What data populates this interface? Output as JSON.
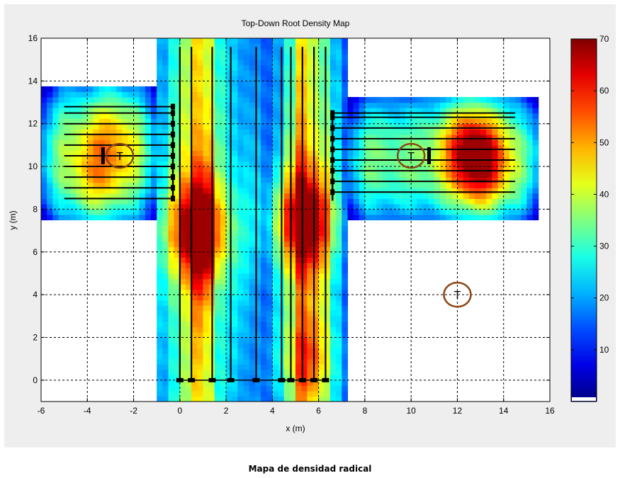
{
  "chart_data": {
    "type": "heatmap",
    "title": "Top-Down Root Density Map",
    "xlabel": "x (m)",
    "ylabel": "y (m)",
    "xlim": [
      -6,
      16
    ],
    "ylim": [
      -1,
      16
    ],
    "x_ticks": [
      -6,
      -4,
      -2,
      0,
      2,
      4,
      6,
      8,
      10,
      12,
      14,
      16
    ],
    "y_ticks": [
      0,
      2,
      4,
      6,
      8,
      10,
      12,
      14,
      16
    ],
    "grid": true,
    "colorbar": {
      "min": 0,
      "max": 70,
      "ticks": [
        10,
        20,
        30,
        40,
        50,
        60,
        70
      ],
      "colormap": "jet"
    },
    "density_bands_x": [
      {
        "x0": -1,
        "x1": -0.5,
        "value": 25
      },
      {
        "x0": -0.5,
        "x1": 0,
        "value": 34
      },
      {
        "x0": 0,
        "x1": 0.5,
        "value": 44
      },
      {
        "x0": 0.5,
        "x1": 1,
        "value": 55
      },
      {
        "x0": 1,
        "x1": 1.5,
        "value": 50
      },
      {
        "x0": 1.5,
        "x1": 2,
        "value": 33
      },
      {
        "x0": 2,
        "x1": 2.5,
        "value": 27
      },
      {
        "x0": 2.5,
        "x1": 3,
        "value": 24
      },
      {
        "x0": 3,
        "x1": 3.5,
        "value": 22
      },
      {
        "x0": 3.5,
        "x1": 4,
        "value": 17
      },
      {
        "x0": 4,
        "x1": 4.5,
        "value": 24
      },
      {
        "x0": 4.5,
        "x1": 5,
        "value": 36
      },
      {
        "x0": 5,
        "x1": 5.5,
        "value": 54
      },
      {
        "x0": 5.5,
        "x1": 6,
        "value": 47
      },
      {
        "x0": 6,
        "x1": 6.5,
        "value": 40
      },
      {
        "x0": 6.5,
        "x1": 7,
        "value": 26
      },
      {
        "x0": 7,
        "x1": 7.3,
        "value": 16
      }
    ],
    "density_regions": [
      {
        "name": "center",
        "x": [
          -1,
          7.3
        ],
        "y": [
          -1,
          16
        ]
      },
      {
        "name": "left-arm",
        "x": [
          -6,
          -1
        ],
        "y": [
          7.5,
          13.7
        ]
      },
      {
        "name": "right-arm",
        "x": [
          7.3,
          15.5
        ],
        "y": [
          7.5,
          13.2
        ]
      }
    ],
    "hotspots": [
      {
        "x": 0.8,
        "y": 7.0,
        "value": 65
      },
      {
        "x": 5.3,
        "y": 7.5,
        "value": 63
      },
      {
        "x": 12.6,
        "y": 11.0,
        "value": 58
      },
      {
        "x": 13.0,
        "y": 9.8,
        "value": 54
      },
      {
        "x": -3.5,
        "y": 9.3,
        "value": 48
      },
      {
        "x": -3.0,
        "y": 11.8,
        "value": 45
      },
      {
        "x": 5.5,
        "y": 1.0,
        "value": 47
      }
    ],
    "vertical_lines_x": [
      0.0,
      0.5,
      1.4,
      2.2,
      3.3,
      4.4,
      4.8,
      5.3,
      5.8,
      6.3
    ],
    "left_arm_lines_y": [
      8.5,
      9.0,
      9.5,
      10.0,
      10.5,
      11.0,
      11.5,
      12.0,
      12.5,
      12.8
    ],
    "right_arm_lines_y": [
      8.8,
      9.3,
      9.8,
      10.3,
      10.8,
      11.3,
      11.8,
      12.3,
      12.5
    ],
    "trees": [
      {
        "label": "T",
        "x": -2.6,
        "y": 10.5
      },
      {
        "label": "T",
        "x": 10.0,
        "y": 10.5
      },
      {
        "label": "T",
        "x": 12.0,
        "y": 4.0
      }
    ]
  },
  "caption": "Mapa de densidad radical"
}
